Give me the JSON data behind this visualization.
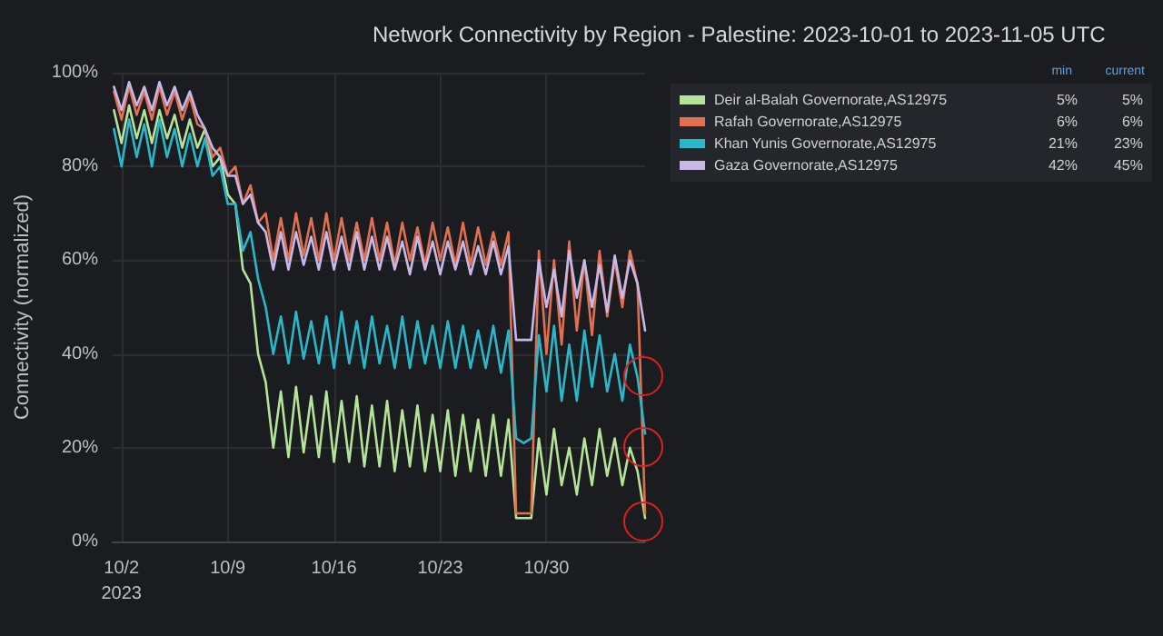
{
  "chart_data": {
    "type": "line",
    "title": "Network Connectivity by Region - Palestine: 2023-10-01 to 2023-11-05 UTC",
    "ylabel": "Connectivity (normalized)",
    "x": [
      "2023-10-01T12:00",
      "2023-10-02T00:00",
      "2023-10-02T12:00",
      "2023-10-03T00:00",
      "2023-10-03T12:00",
      "2023-10-04T00:00",
      "2023-10-04T12:00",
      "2023-10-05T00:00",
      "2023-10-05T12:00",
      "2023-10-06T00:00",
      "2023-10-06T12:00",
      "2023-10-07T00:00",
      "2023-10-07T12:00",
      "2023-10-08T00:00",
      "2023-10-08T12:00",
      "2023-10-09T00:00",
      "2023-10-09T12:00",
      "2023-10-10T00:00",
      "2023-10-10T12:00",
      "2023-10-11T00:00",
      "2023-10-11T12:00",
      "2023-10-12T00:00",
      "2023-10-12T12:00",
      "2023-10-13T00:00",
      "2023-10-13T12:00",
      "2023-10-14T00:00",
      "2023-10-14T12:00",
      "2023-10-15T00:00",
      "2023-10-15T12:00",
      "2023-10-16T00:00",
      "2023-10-16T12:00",
      "2023-10-17T00:00",
      "2023-10-17T12:00",
      "2023-10-18T00:00",
      "2023-10-18T12:00",
      "2023-10-19T00:00",
      "2023-10-19T12:00",
      "2023-10-20T00:00",
      "2023-10-20T12:00",
      "2023-10-21T00:00",
      "2023-10-21T12:00",
      "2023-10-22T00:00",
      "2023-10-22T12:00",
      "2023-10-23T00:00",
      "2023-10-23T12:00",
      "2023-10-24T00:00",
      "2023-10-24T12:00",
      "2023-10-25T00:00",
      "2023-10-25T12:00",
      "2023-10-26T00:00",
      "2023-10-26T12:00",
      "2023-10-27T00:00",
      "2023-10-27T12:00",
      "2023-10-28T00:00",
      "2023-10-28T12:00",
      "2023-10-29T00:00",
      "2023-10-29T12:00",
      "2023-10-30T00:00",
      "2023-10-30T12:00",
      "2023-10-31T00:00",
      "2023-10-31T12:00",
      "2023-11-01T00:00",
      "2023-11-01T12:00",
      "2023-11-02T00:00",
      "2023-11-02T12:00",
      "2023-11-03T00:00",
      "2023-11-03T12:00",
      "2023-11-04T00:00",
      "2023-11-04T12:00",
      "2023-11-05T00:00",
      "2023-11-05T12:00"
    ],
    "series": [
      {
        "name": "Deir al-Balah Governorate,AS12975",
        "color": "#b5e39a",
        "values": [
          92,
          85,
          93,
          86,
          92,
          85,
          92,
          86,
          91,
          84,
          90,
          84,
          88,
          80,
          82,
          74,
          72,
          58,
          55,
          40,
          34,
          20,
          32,
          18,
          33,
          19,
          31,
          18,
          32,
          17,
          30,
          17,
          31,
          16,
          29,
          16,
          30,
          15,
          28,
          16,
          29,
          15,
          27,
          15,
          28,
          14,
          27,
          15,
          26,
          14,
          27,
          14,
          26,
          5,
          5,
          5,
          22,
          10,
          24,
          12,
          20,
          10,
          22,
          12,
          24,
          14,
          22,
          12,
          20,
          15,
          5
        ]
      },
      {
        "name": "Rafah Governorate,AS12975",
        "color": "#e07050",
        "values": [
          96,
          90,
          97,
          91,
          96,
          90,
          97,
          91,
          96,
          90,
          95,
          89,
          88,
          82,
          84,
          78,
          80,
          72,
          76,
          68,
          70,
          60,
          69,
          60,
          70,
          61,
          69,
          60,
          70,
          60,
          69,
          60,
          68,
          60,
          69,
          60,
          68,
          59,
          68,
          60,
          67,
          59,
          68,
          60,
          67,
          59,
          68,
          59,
          67,
          59,
          66,
          59,
          66,
          6,
          6,
          6,
          62,
          40,
          60,
          42,
          64,
          45,
          60,
          44,
          62,
          48,
          60,
          50,
          62,
          55,
          6
        ]
      },
      {
        "name": "Khan Yunis Governorate,AS12975",
        "color": "#2ab7ca",
        "values": [
          88,
          80,
          90,
          82,
          89,
          80,
          90,
          82,
          88,
          80,
          87,
          80,
          86,
          78,
          80,
          72,
          72,
          62,
          66,
          56,
          50,
          40,
          48,
          38,
          49,
          39,
          47,
          38,
          48,
          37,
          49,
          38,
          47,
          37,
          48,
          38,
          46,
          37,
          48,
          37,
          47,
          38,
          46,
          37,
          47,
          37,
          46,
          37,
          45,
          37,
          46,
          36,
          45,
          22,
          21,
          22,
          44,
          32,
          46,
          30,
          42,
          30,
          45,
          33,
          44,
          32,
          40,
          30,
          42,
          35,
          23
        ]
      },
      {
        "name": "Gaza Governorate,AS12975",
        "color": "#c8b8e8",
        "values": [
          97,
          92,
          98,
          93,
          97,
          92,
          98,
          93,
          97,
          92,
          96,
          91,
          88,
          84,
          82,
          78,
          78,
          72,
          74,
          68,
          66,
          58,
          66,
          58,
          66,
          59,
          65,
          58,
          66,
          58,
          65,
          58,
          66,
          58,
          65,
          58,
          65,
          58,
          64,
          57,
          65,
          58,
          64,
          57,
          64,
          58,
          64,
          57,
          63,
          57,
          64,
          57,
          63,
          43,
          43,
          43,
          60,
          50,
          58,
          48,
          62,
          52,
          60,
          50,
          59,
          49,
          61,
          52,
          60,
          55,
          45
        ]
      }
    ],
    "xlim": [
      "2023-10-01T10:00",
      "2023-11-05T12:00"
    ],
    "xticks": [
      {
        "value": "2023-10-02",
        "label": "10/2\n2023"
      },
      {
        "value": "2023-10-09",
        "label": "10/9"
      },
      {
        "value": "2023-10-16",
        "label": "10/16"
      },
      {
        "value": "2023-10-23",
        "label": "10/23"
      },
      {
        "value": "2023-10-30",
        "label": "10/30"
      }
    ],
    "ylim": [
      0,
      100
    ],
    "yticks": [
      {
        "value": 0,
        "label": "0%"
      },
      {
        "value": 20,
        "label": "20%"
      },
      {
        "value": 40,
        "label": "40%"
      },
      {
        "value": 60,
        "label": "60%"
      },
      {
        "value": 80,
        "label": "80%"
      },
      {
        "value": 100,
        "label": "100%"
      }
    ],
    "annotations": [
      "min",
      "current",
      "5%",
      "5%",
      "6%",
      "6%",
      "21%",
      "23%",
      "42%",
      "45%"
    ],
    "grid": true,
    "legend": "top right",
    "marker": "none",
    "line_style": "solid"
  }
}
